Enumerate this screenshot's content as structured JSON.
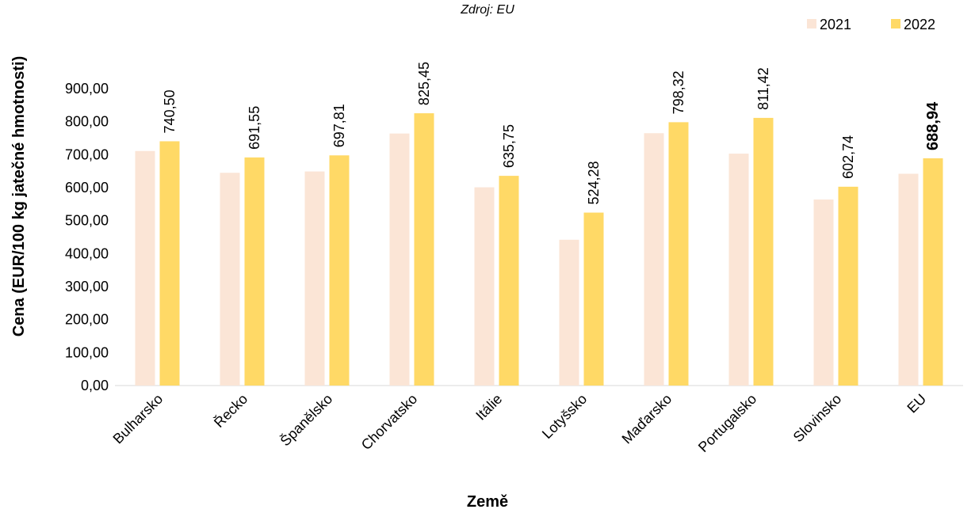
{
  "chart_data": {
    "type": "bar",
    "subtitle": "Zdroj: EU",
    "xlabel": "Země",
    "ylabel": "Cena (EUR/100 kg jatečné hmotnosti)",
    "categories": [
      "Bulharsko",
      "Řecko",
      "Španělsko",
      "Chorvatsko",
      "Itálie",
      "Lotyšsko",
      "Maďarsko",
      "Portugalsko",
      "Slovinsko",
      "EU"
    ],
    "series": [
      {
        "name": "2021",
        "color": "#FBE5D6",
        "values": [
          711,
          645,
          649,
          764,
          601,
          442,
          765,
          703,
          564,
          642
        ]
      },
      {
        "name": "2022",
        "color": "#FFD966",
        "values": [
          740.5,
          691.55,
          697.81,
          825.45,
          635.75,
          524.28,
          798.32,
          811.42,
          602.74,
          688.94
        ]
      }
    ],
    "data_labels": [
      "740,50",
      "691,55",
      "697,81",
      "825,45",
      "635,75",
      "524,28",
      "798,32",
      "811,42",
      "602,74",
      "688,94"
    ],
    "bold_label_category": "EU",
    "ylim": [
      0,
      900
    ],
    "y_ticks": [
      0,
      100,
      200,
      300,
      400,
      500,
      600,
      700,
      800,
      900
    ],
    "y_tick_labels": [
      "0,00",
      "100,00",
      "200,00",
      "300,00",
      "400,00",
      "500,00",
      "600,00",
      "700,00",
      "800,00",
      "900,00"
    ],
    "grid": false,
    "legend_position": "top-right"
  }
}
